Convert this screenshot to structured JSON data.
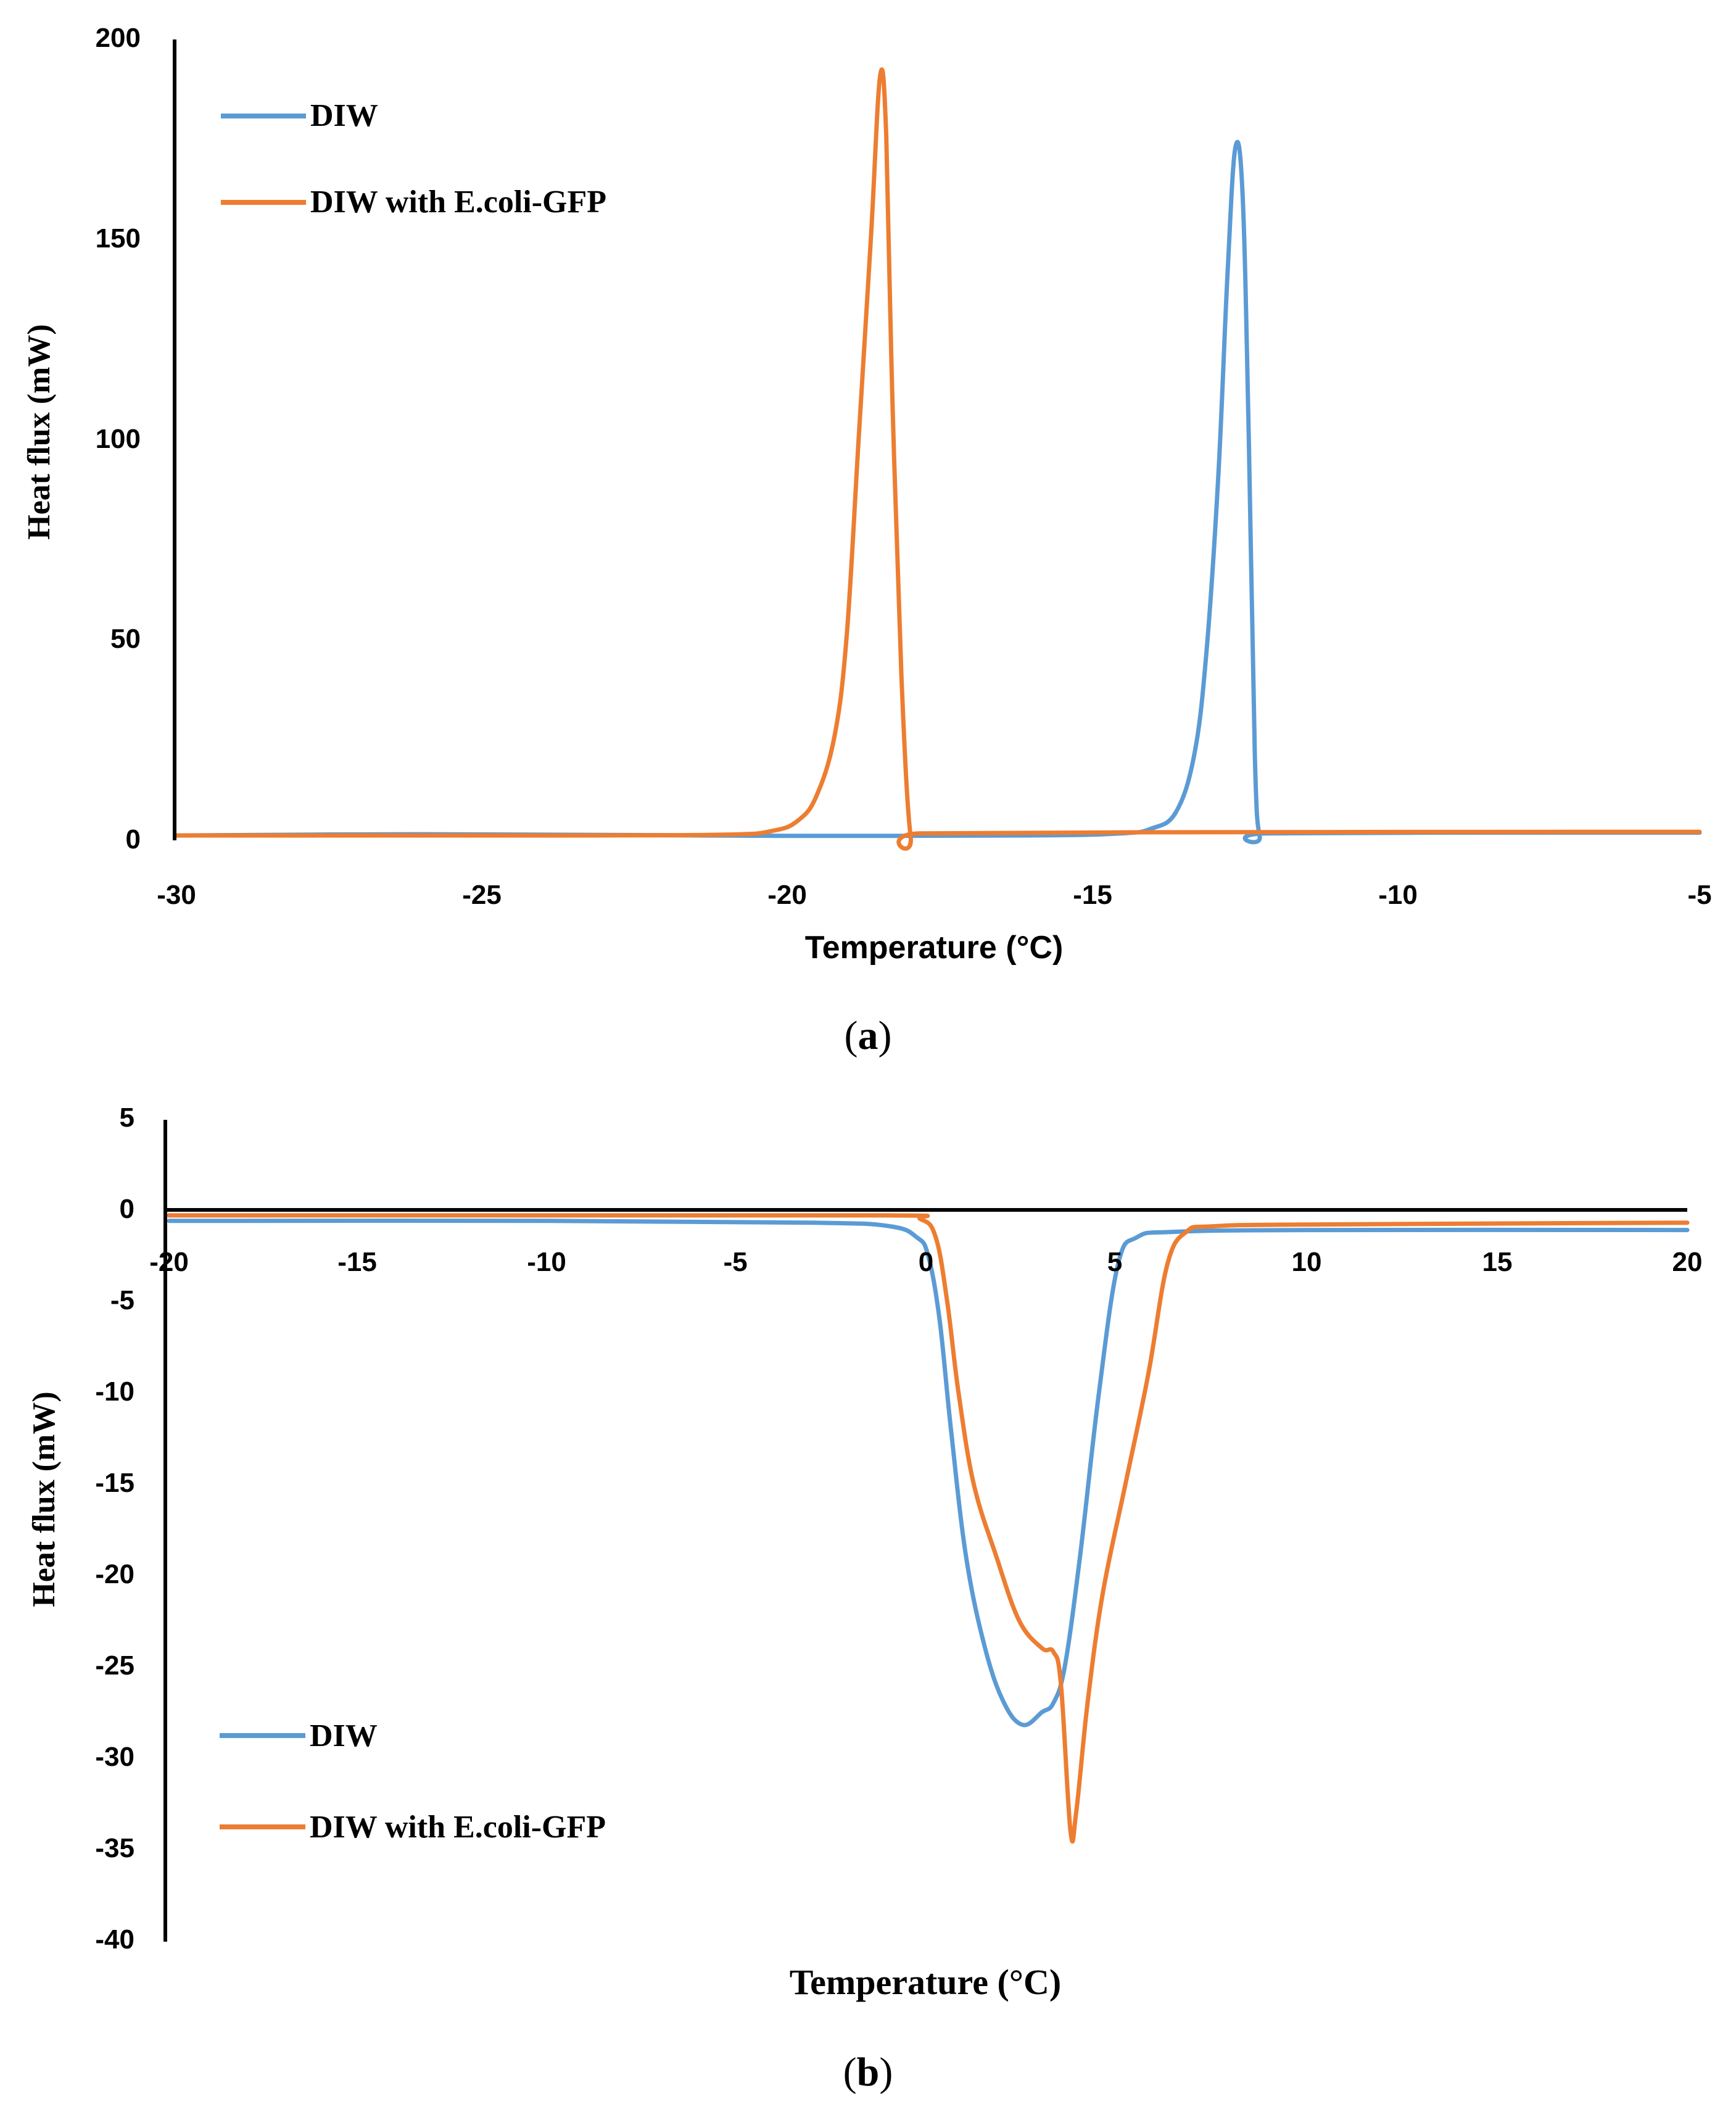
{
  "chart_data": [
    {
      "type": "line",
      "panel_label": "a",
      "xlabel": "Temperature (°C)",
      "ylabel": "Heat flux (mW)",
      "xlim": [
        -30,
        -5
      ],
      "ylim": [
        0,
        200
      ],
      "xticks": [
        "-30",
        "-25",
        "-20",
        "-15",
        "-10",
        "-5"
      ],
      "yticks": [
        "0",
        "50",
        "100",
        "150",
        "200"
      ],
      "legend_position": "top-left",
      "series": [
        {
          "name": "DIW",
          "color": "#5b9bd5",
          "points": [
            [
              -30,
              0.3
            ],
            [
              -26,
              0.6
            ],
            [
              -22.5,
              0.4
            ],
            [
              -20,
              0.2
            ],
            [
              -16,
              0.3
            ],
            [
              -14.5,
              0.8
            ],
            [
              -14,
              2
            ],
            [
              -13.6,
              6
            ],
            [
              -13.3,
              20
            ],
            [
              -13.1,
              45
            ],
            [
              -12.9,
              90
            ],
            [
              -12.75,
              140
            ],
            [
              -12.62,
              172
            ],
            [
              -12.5,
              160
            ],
            [
              -12.4,
              100
            ],
            [
              -12.3,
              20
            ],
            [
              -12.22,
              0
            ],
            [
              -12.1,
              0.8
            ],
            [
              -8,
              1
            ],
            [
              -5,
              1
            ]
          ]
        },
        {
          "name": "DIW with E.coli-GFP",
          "color": "#ed7d31",
          "points": [
            [
              -30,
              0.3
            ],
            [
              -24,
              0.3
            ],
            [
              -21,
              0.5
            ],
            [
              -20.2,
              1.5
            ],
            [
              -19.8,
              4
            ],
            [
              -19.5,
              10
            ],
            [
              -19.2,
              25
            ],
            [
              -19,
              50
            ],
            [
              -18.8,
              100
            ],
            [
              -18.6,
              150
            ],
            [
              -18.45,
              190
            ],
            [
              -18.35,
              175
            ],
            [
              -18.25,
              110
            ],
            [
              -18.1,
              40
            ],
            [
              -17.95,
              0
            ],
            [
              -17.8,
              0.8
            ],
            [
              -14,
              1.1
            ],
            [
              -5,
              1.2
            ]
          ]
        }
      ]
    },
    {
      "type": "line",
      "panel_label": "b",
      "xlabel": "Temperature (°C)",
      "ylabel": "Heat flux (mW)",
      "xlim": [
        -20,
        20
      ],
      "ylim": [
        -40,
        5
      ],
      "xticks": [
        "-20",
        "-15",
        "-10",
        "-5",
        "0",
        "5",
        "10",
        "15",
        "20"
      ],
      "yticks": [
        "5",
        "0",
        "-5",
        "-10",
        "-15",
        "-20",
        "-25",
        "-30",
        "-35",
        "-40"
      ],
      "legend_position": "bottom-left",
      "series": [
        {
          "name": "DIW",
          "color": "#5b9bd5",
          "points": [
            [
              -20,
              -0.6
            ],
            [
              -10,
              -0.6
            ],
            [
              -3,
              -0.7
            ],
            [
              -1,
              -0.9
            ],
            [
              -0.3,
              -1.5
            ],
            [
              0,
              -2.5
            ],
            [
              0.3,
              -6
            ],
            [
              0.6,
              -12
            ],
            [
              1,
              -19
            ],
            [
              1.5,
              -24
            ],
            [
              2,
              -27
            ],
            [
              2.5,
              -28.2
            ],
            [
              3,
              -27.5
            ],
            [
              3.3,
              -27
            ],
            [
              3.6,
              -25
            ],
            [
              4,
              -19
            ],
            [
              4.5,
              -10
            ],
            [
              5,
              -3
            ],
            [
              5.5,
              -1.5
            ],
            [
              6.5,
              -1.2
            ],
            [
              10,
              -1.1
            ],
            [
              20,
              -1.1
            ]
          ]
        },
        {
          "name": "DIW with E.coli-GFP",
          "color": "#ed7d31",
          "points": [
            [
              -20,
              -0.3
            ],
            [
              -10,
              -0.3
            ],
            [
              -1,
              -0.3
            ],
            [
              -0.2,
              -0.5
            ],
            [
              0.2,
              -1.5
            ],
            [
              0.5,
              -5
            ],
            [
              0.8,
              -10
            ],
            [
              1.2,
              -15
            ],
            [
              1.8,
              -19
            ],
            [
              2.4,
              -22.5
            ],
            [
              3,
              -24
            ],
            [
              3.3,
              -24.2
            ],
            [
              3.5,
              -26
            ],
            [
              3.75,
              -34
            ],
            [
              3.9,
              -33
            ],
            [
              4.2,
              -27
            ],
            [
              4.6,
              -21
            ],
            [
              5.2,
              -15
            ],
            [
              5.8,
              -9
            ],
            [
              6.3,
              -3
            ],
            [
              6.8,
              -1.2
            ],
            [
              7.5,
              -0.9
            ],
            [
              10,
              -0.8
            ],
            [
              20,
              -0.7
            ]
          ]
        }
      ]
    }
  ]
}
